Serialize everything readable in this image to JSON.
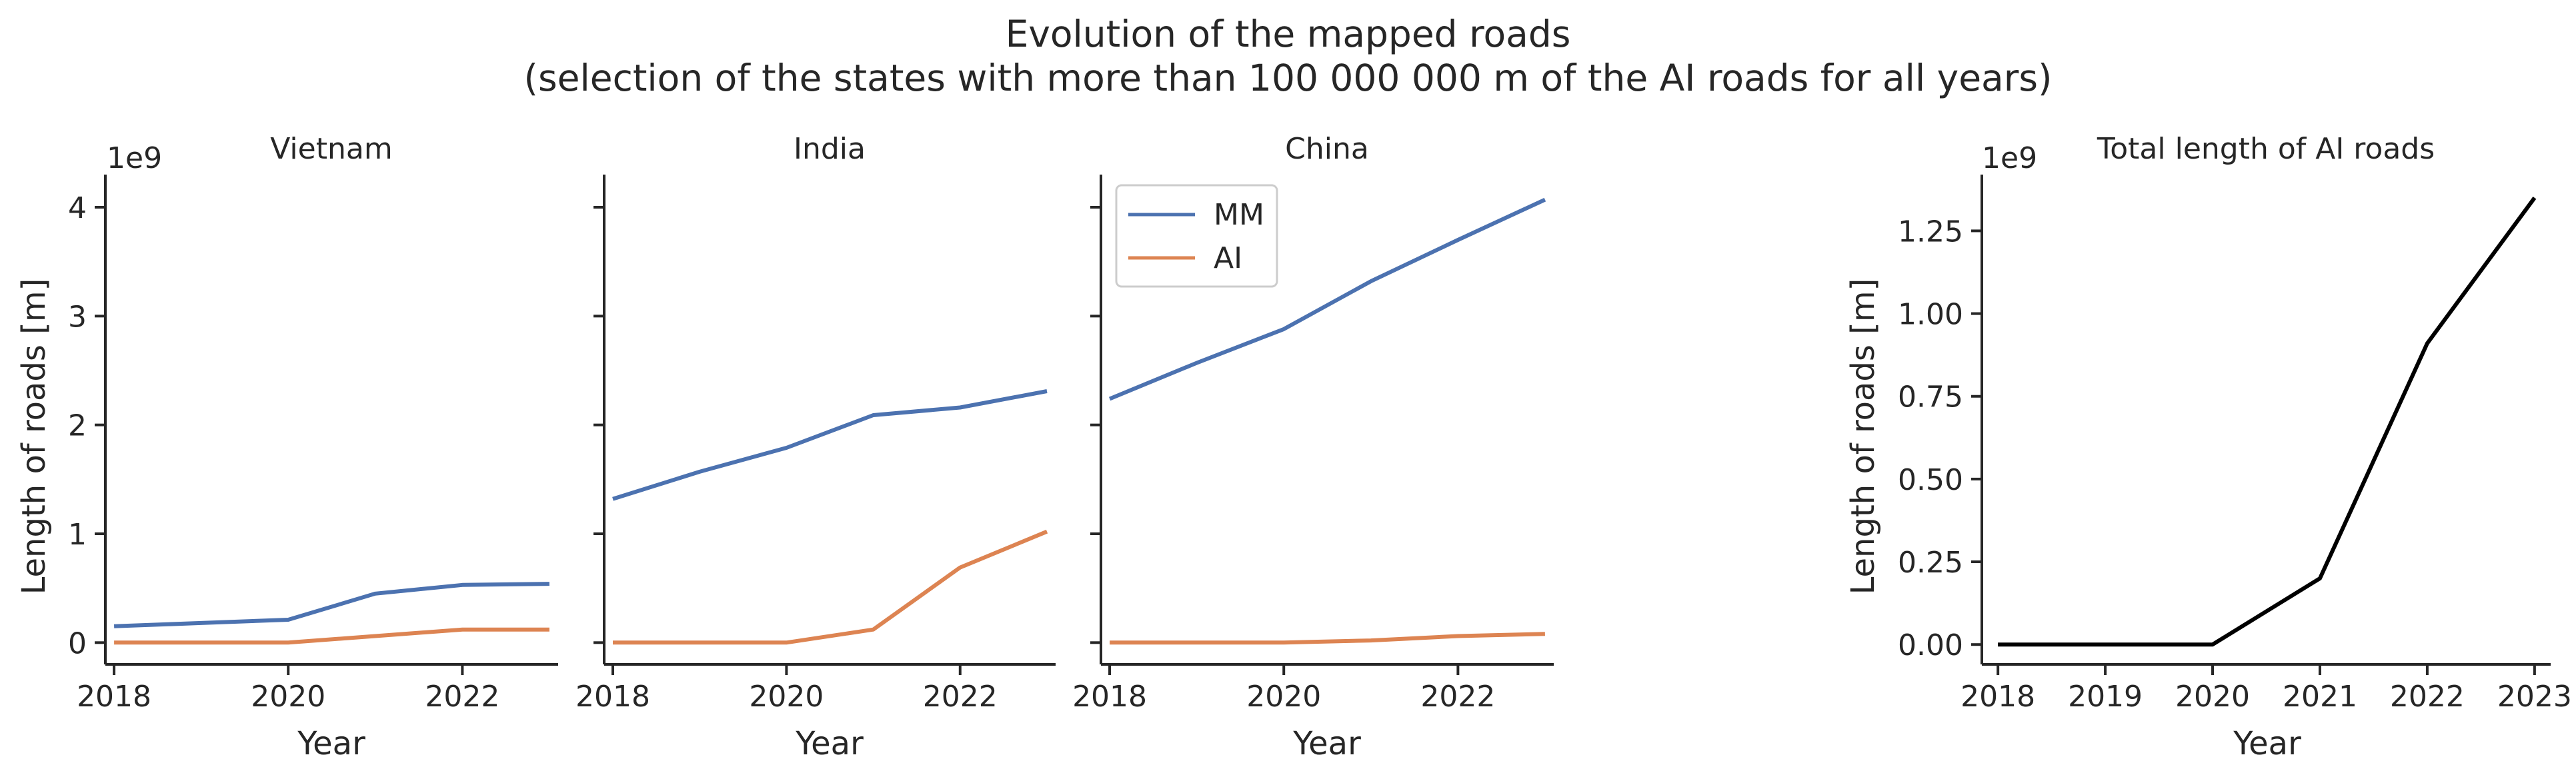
{
  "figure": {
    "title_line1": "Evolution of the mapped roads",
    "title_line2": "(selection of the states with more than 100 000 000 m of the AI roads for all years)"
  },
  "colors": {
    "MM": "#4c72b0",
    "AI": "#dd8452",
    "total": "#000000",
    "axis": "#262626"
  },
  "chart_data": [
    {
      "type": "line",
      "title": "Vietnam",
      "xlabel": "Year",
      "ylabel": "Length of roads [m]",
      "y_offset_text": "1e9",
      "x": [
        2018,
        2019,
        2020,
        2021,
        2022,
        2023
      ],
      "xticks": [
        2018,
        2020,
        2022
      ],
      "xlim": [
        2017.9,
        2023.1
      ],
      "yticks": [
        0,
        1,
        2,
        3,
        4
      ],
      "ylim": [
        -0.2,
        4.3
      ],
      "y_unit": "1e9 m",
      "series": [
        {
          "name": "MM",
          "values": [
            0.15,
            0.18,
            0.21,
            0.45,
            0.53,
            0.54
          ]
        },
        {
          "name": "AI",
          "values": [
            0.0,
            0.0,
            0.0,
            0.06,
            0.12,
            0.12
          ]
        }
      ]
    },
    {
      "type": "line",
      "title": "India",
      "xlabel": "Year",
      "x": [
        2018,
        2019,
        2020,
        2021,
        2022,
        2023
      ],
      "xticks": [
        2018,
        2020,
        2022
      ],
      "xlim": [
        2017.9,
        2023.1
      ],
      "yticks": [
        0,
        1,
        2,
        3,
        4
      ],
      "ylim": [
        -0.2,
        4.3
      ],
      "y_unit": "1e9 m",
      "series": [
        {
          "name": "MM",
          "values": [
            1.32,
            1.57,
            1.79,
            2.09,
            2.16,
            2.31
          ]
        },
        {
          "name": "AI",
          "values": [
            0.0,
            0.0,
            0.0,
            0.12,
            0.69,
            1.02
          ]
        }
      ]
    },
    {
      "type": "line",
      "title": "China",
      "xlabel": "Year",
      "legend": [
        "MM",
        "AI"
      ],
      "legend_position": "top-left",
      "x": [
        2018,
        2019,
        2020,
        2021,
        2022,
        2023
      ],
      "xticks": [
        2018,
        2020,
        2022
      ],
      "xlim": [
        2017.9,
        2023.1
      ],
      "yticks": [
        0,
        1,
        2,
        3,
        4
      ],
      "ylim": [
        -0.2,
        4.3
      ],
      "y_unit": "1e9 m",
      "series": [
        {
          "name": "MM",
          "values": [
            2.24,
            2.57,
            2.88,
            3.32,
            3.7,
            4.07
          ]
        },
        {
          "name": "AI",
          "values": [
            0.0,
            0.0,
            0.0,
            0.02,
            0.06,
            0.08
          ]
        }
      ]
    },
    {
      "type": "line",
      "title": "Total length of AI roads",
      "xlabel": "Year",
      "ylabel": "Length of roads [m]",
      "y_offset_text": "1e9",
      "x": [
        2018,
        2019,
        2020,
        2021,
        2022,
        2023
      ],
      "xticks": [
        2018,
        2019,
        2020,
        2021,
        2022,
        2023
      ],
      "xlim": [
        2017.85,
        2023.15
      ],
      "yticks": [
        0.0,
        0.25,
        0.5,
        0.75,
        1.0,
        1.25
      ],
      "yticklabels": [
        "0.00",
        "0.25",
        "0.50",
        "0.75",
        "1.00",
        "1.25"
      ],
      "ylim": [
        -0.06,
        1.42
      ],
      "y_unit": "1e9 m",
      "series": [
        {
          "values": [
            0.0,
            0.0,
            0.0,
            0.2,
            0.91,
            1.35
          ]
        }
      ]
    }
  ]
}
